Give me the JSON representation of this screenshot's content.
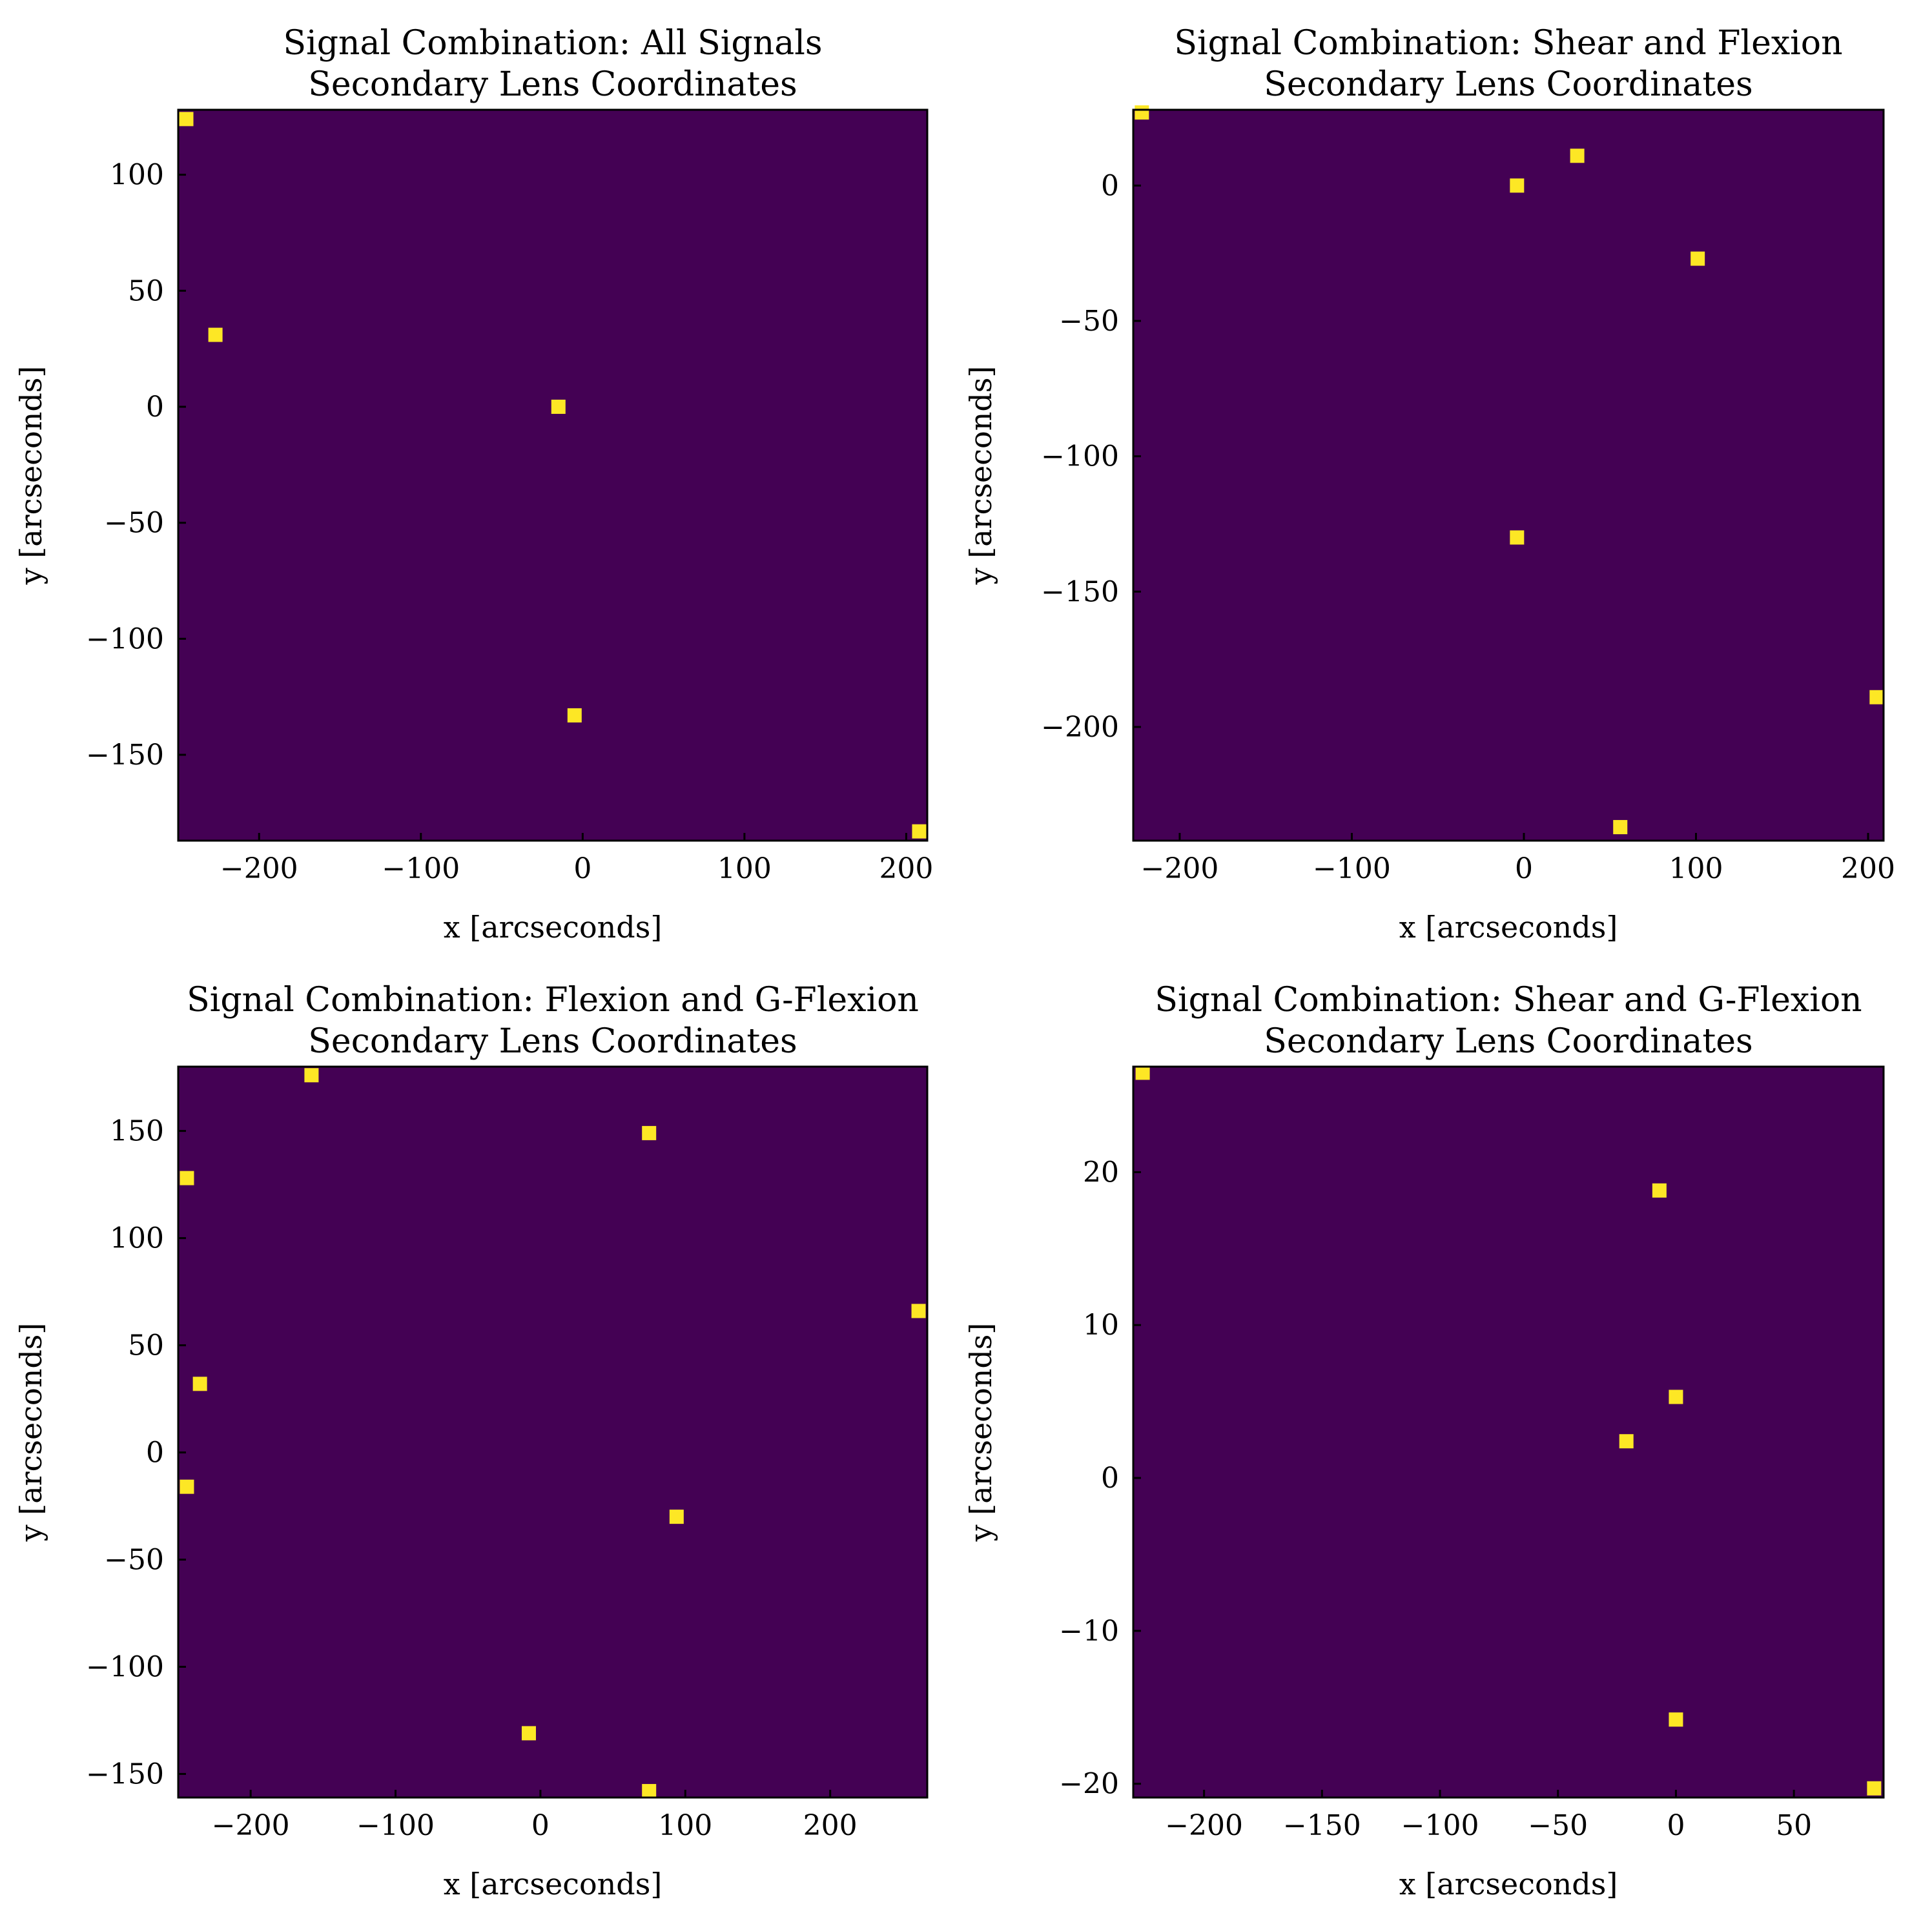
{
  "colors": {
    "background": "#440154",
    "marker": "#fde725",
    "frame": "#000000"
  },
  "chart_data": [
    {
      "type": "scatter",
      "title": [
        "Signal Combination: All Signals",
        "Secondary Lens Coordinates"
      ],
      "xlabel": "x [arcseconds]",
      "ylabel": "y [arcseconds]",
      "xlim": [
        -250,
        213
      ],
      "ylim": [
        -187,
        128
      ],
      "xticks": [
        -200,
        -100,
        0,
        100,
        200
      ],
      "yticks": [
        -150,
        -100,
        -50,
        0,
        50,
        100
      ],
      "x": [
        -245,
        -227,
        -15,
        -5,
        208
      ],
      "y": [
        124,
        31,
        0,
        -133,
        -183
      ]
    },
    {
      "type": "scatter",
      "title": [
        "Signal Combination: Shear and Flexion",
        "Secondary Lens Coordinates"
      ],
      "xlabel": "x [arcseconds]",
      "ylabel": "y [arcseconds]",
      "xlim": [
        -227,
        209
      ],
      "ylim": [
        -242,
        28
      ],
      "xticks": [
        -200,
        -100,
        0,
        100,
        200
      ],
      "yticks": [
        -200,
        -150,
        -100,
        -50,
        0
      ],
      "x": [
        -222,
        -4,
        31,
        101,
        -4,
        205,
        56
      ],
      "y": [
        27,
        0,
        11,
        -27,
        -130,
        -189,
        -237
      ]
    },
    {
      "type": "scatter",
      "title": [
        "Signal Combination: Flexion and G-Flexion",
        "Secondary Lens Coordinates"
      ],
      "xlabel": "x [arcseconds]",
      "ylabel": "y [arcseconds]",
      "xlim": [
        -250,
        267
      ],
      "ylim": [
        -161,
        180
      ],
      "xticks": [
        -200,
        -100,
        0,
        100,
        200
      ],
      "yticks": [
        -150,
        -100,
        -50,
        0,
        50,
        100,
        150
      ],
      "x": [
        -158,
        75,
        -244,
        261,
        -235,
        -244,
        94,
        -8,
        75
      ],
      "y": [
        176,
        149,
        128,
        66,
        32,
        -16,
        -30,
        -131,
        -158
      ]
    },
    {
      "type": "scatter",
      "title": [
        "Signal Combination: Shear and G-Flexion",
        "Secondary Lens Coordinates"
      ],
      "xlabel": "x [arcseconds]",
      "ylabel": "y [arcseconds]",
      "xlim": [
        -230,
        88
      ],
      "ylim": [
        -20.9,
        26.9
      ],
      "xticks": [
        -200,
        -150,
        -100,
        -50,
        0,
        50
      ],
      "yticks": [
        -20,
        -10,
        0,
        10,
        20
      ],
      "x": [
        -226,
        -7,
        0,
        -21,
        0,
        84
      ],
      "y": [
        26.5,
        18.8,
        5.3,
        2.4,
        -15.8,
        -20.3
      ]
    }
  ]
}
